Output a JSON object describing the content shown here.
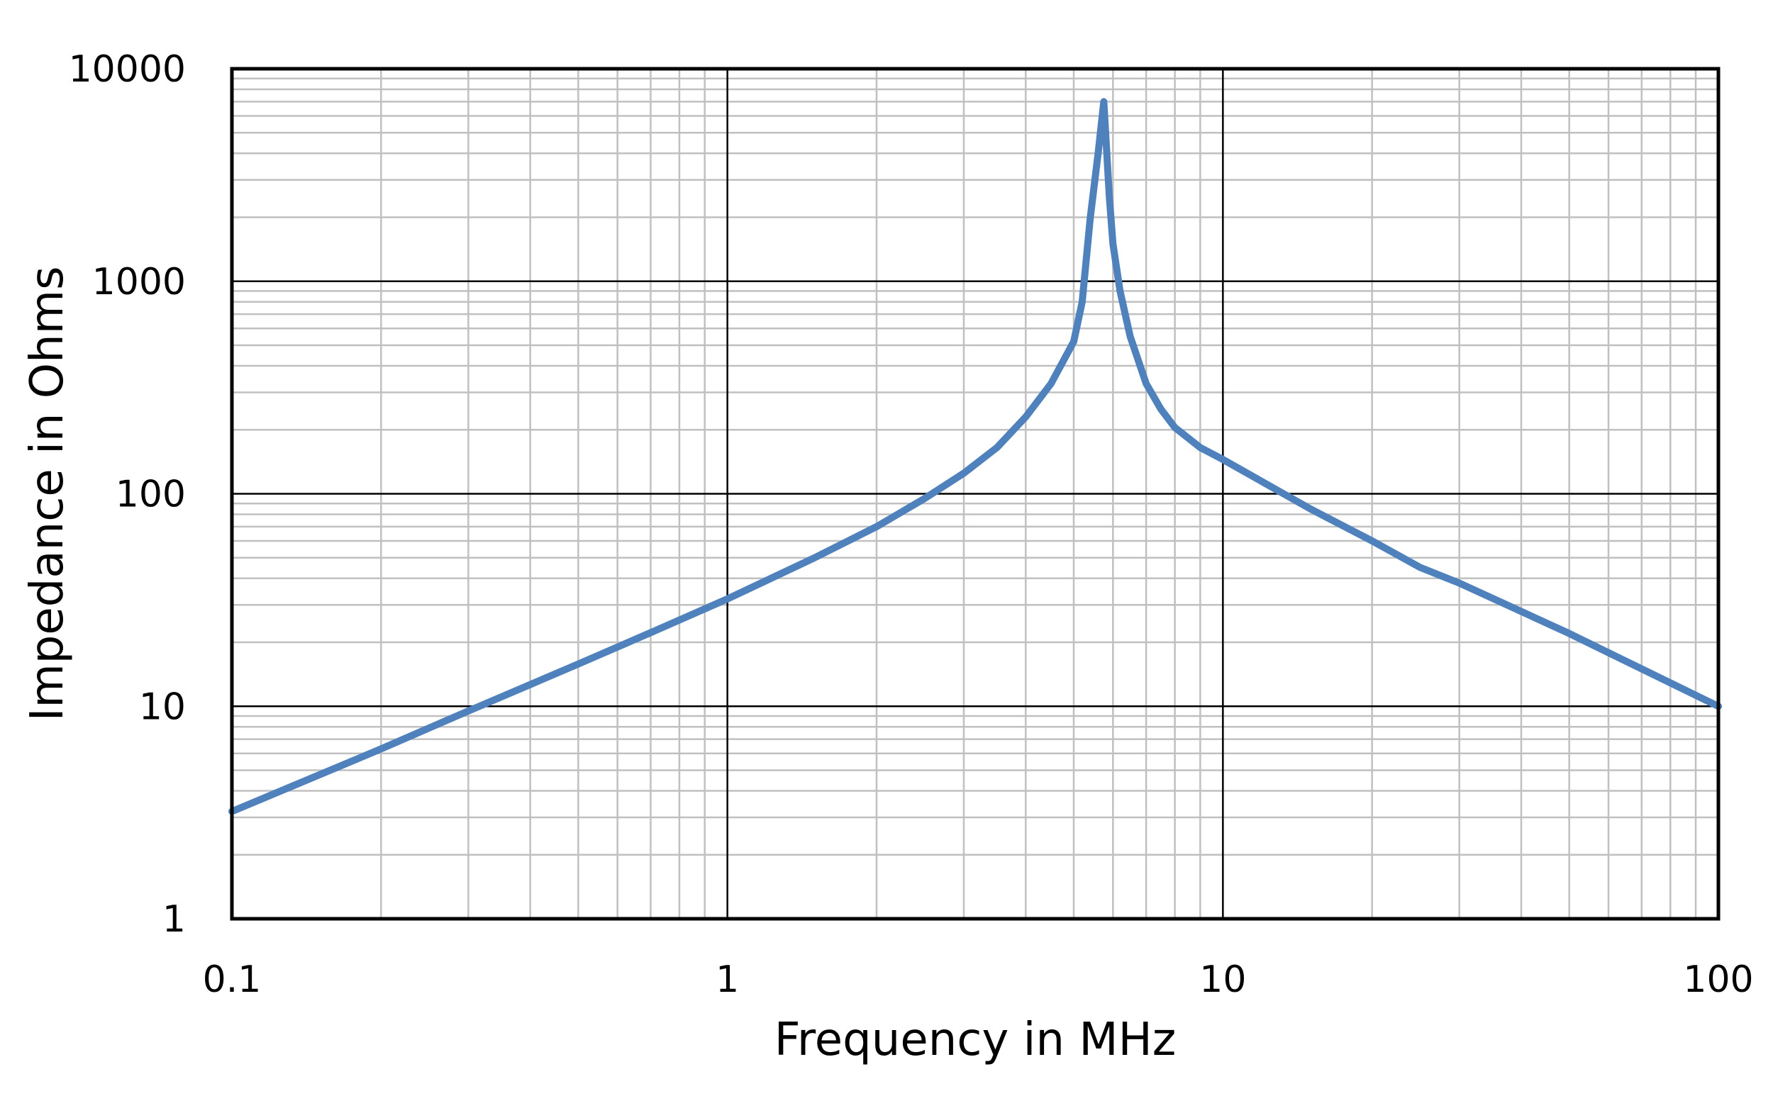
{
  "chart_data": {
    "type": "line",
    "title": "",
    "xlabel": "Frequency in MHz",
    "ylabel": "Impedance in Ohms",
    "x_scale": "log",
    "y_scale": "log",
    "xlim": [
      0.1,
      100
    ],
    "ylim": [
      1,
      10000
    ],
    "x_ticks": [
      0.1,
      1,
      10,
      100
    ],
    "x_tick_labels": [
      "0.1",
      "1",
      "10",
      "100"
    ],
    "y_ticks": [
      1,
      10,
      100,
      1000,
      10000
    ],
    "y_tick_labels": [
      "1",
      "10",
      "100",
      "1000",
      "10000"
    ],
    "grid": {
      "major": true,
      "minor": true,
      "major_color": "#000000",
      "minor_color": "#c0c0c0"
    },
    "series": [
      {
        "color": "#4f81bd",
        "x": [
          0.1,
          0.2,
          0.3,
          0.5,
          0.7,
          1.0,
          1.5,
          2.0,
          2.5,
          3.0,
          3.5,
          4.0,
          4.5,
          5.0,
          5.2,
          5.4,
          5.6,
          5.75,
          5.9,
          6.0,
          6.2,
          6.5,
          7.0,
          7.5,
          8.0,
          9.0,
          10,
          15,
          20,
          25,
          30,
          50,
          70,
          100
        ],
        "y": [
          3.2,
          6.3,
          9.5,
          15.8,
          22.2,
          32,
          50,
          70,
          95,
          125,
          165,
          230,
          330,
          520,
          800,
          2000,
          4000,
          7000,
          2500,
          1500,
          900,
          550,
          330,
          250,
          205,
          165,
          145,
          85,
          60,
          45,
          38,
          22,
          15,
          10
        ]
      }
    ]
  }
}
